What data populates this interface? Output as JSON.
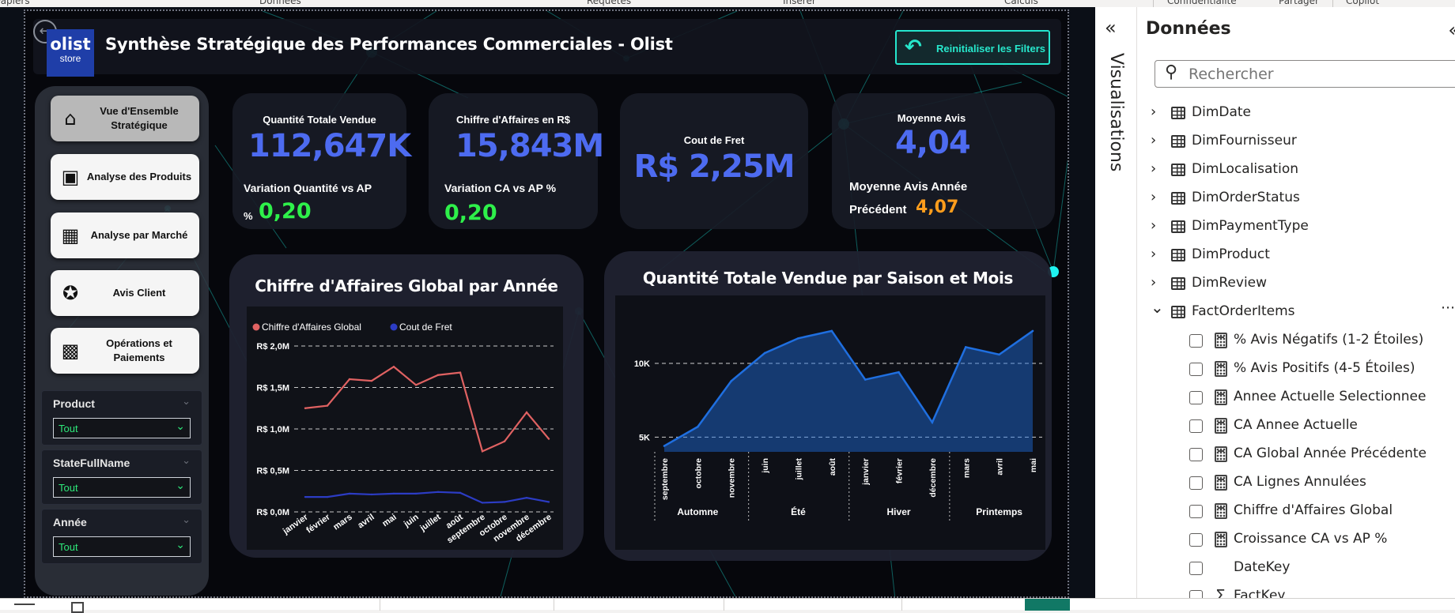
{
  "ribbon": {
    "items": [
      "Papiers",
      "Données",
      "Requêtes",
      "Insérer",
      "Calculs",
      "Confidentialité",
      "Partager",
      "Copilot"
    ]
  },
  "report": {
    "title": "Synthèse Stratégique des Performances Commerciales - Olist",
    "logo_line1": "olist",
    "logo_line2": "store",
    "reset_button": "Reinitialiser les Filters",
    "colors": {
      "accent": "#25e6ce",
      "kpi_blue": "#4d6bf0",
      "positive": "#2ef04a",
      "warning": "#ff9d1c",
      "revenue_line": "#e06262",
      "freight_line": "#2c3cc4",
      "area_fill": "#11478a"
    }
  },
  "nav": {
    "buttons": [
      {
        "label": "Vue d'Ensemble Stratégique",
        "icon": "home-icon",
        "active": true
      },
      {
        "label": "Analyse des Produits",
        "icon": "box-icon",
        "active": false
      },
      {
        "label": "Analyse par Marché",
        "icon": "store-icon",
        "active": false
      },
      {
        "label": "Avis Client",
        "icon": "star-bubble-icon",
        "active": false
      },
      {
        "label": "Opérations et Paiements",
        "icon": "money-icon",
        "active": false
      }
    ],
    "slicers": [
      {
        "title": "Product",
        "value": "Tout"
      },
      {
        "title": "StateFullName",
        "value": "Tout"
      },
      {
        "title": "Année",
        "value": "Tout"
      }
    ]
  },
  "kpis": {
    "quantity": {
      "title": "Quantité Totale Vendue",
      "value": "112,647K",
      "variation_label": "Variation Quantité vs AP",
      "variation_unit": "%",
      "variation_value": "0,20"
    },
    "revenue": {
      "title": "Chiffre d'Affaires en R$",
      "value": "15,843M",
      "variation_label": "Variation CA vs AP %",
      "variation_value": "0,20"
    },
    "freight": {
      "title": "Cout de Fret",
      "value": "R$ 2,25M"
    },
    "rating": {
      "title": "Moyenne Avis",
      "value": "4,04",
      "prev_label_1": "Moyenne Avis Année",
      "prev_label_2": "Précédent",
      "prev_value": "4,07"
    }
  },
  "chart_data": [
    {
      "type": "line",
      "title": "Chiffre d'Affaires Global par Année",
      "categories": [
        "janvier",
        "février",
        "mars",
        "avril",
        "mai",
        "juin",
        "juillet",
        "août",
        "septembre",
        "octobre",
        "novembre",
        "décembre"
      ],
      "series": [
        {
          "name": "Chiffre d'Affaires Global",
          "values": [
            1.25,
            1.28,
            1.6,
            1.58,
            1.75,
            1.53,
            1.65,
            1.68,
            0.73,
            0.85,
            1.2,
            0.88
          ],
          "color": "#e06262"
        },
        {
          "name": "Cout de Fret",
          "values": [
            0.18,
            0.18,
            0.22,
            0.21,
            0.22,
            0.22,
            0.24,
            0.23,
            0.11,
            0.12,
            0.17,
            0.12
          ],
          "color": "#2c3cc4"
        }
      ],
      "yticks": [
        "R$ 0,0M",
        "R$ 0,5M",
        "R$ 1,0M",
        "R$ 1,5M",
        "R$ 2,0M"
      ],
      "ylim": [
        0,
        2.0
      ],
      "legend": "top-left",
      "grid": true
    },
    {
      "type": "area",
      "title": "Quantité Totale Vendue par Saison et Mois",
      "categories": [
        "septembre",
        "octobre",
        "novembre",
        "juin",
        "juillet",
        "août",
        "janvier",
        "février",
        "décembre",
        "mars",
        "avril",
        "mai"
      ],
      "groups": [
        {
          "name": "Automne",
          "months": [
            "septembre",
            "octobre",
            "novembre"
          ]
        },
        {
          "name": "Été",
          "months": [
            "juin",
            "juillet",
            "août"
          ]
        },
        {
          "name": "Hiver",
          "months": [
            "janvier",
            "février",
            "décembre"
          ]
        },
        {
          "name": "Printemps",
          "months": [
            "mars",
            "avril",
            "mai"
          ]
        }
      ],
      "values": [
        4400,
        5700,
        8800,
        10700,
        11700,
        12200,
        8900,
        9400,
        6000,
        11100,
        10600,
        12200
      ],
      "yticks": [
        "5K",
        "10K"
      ],
      "ytick_values": [
        5000,
        10000
      ],
      "ylim": [
        4000,
        13000
      ],
      "grid": true,
      "color": "#1f6fe0"
    }
  ],
  "side": {
    "visualisations_label": "Visualisations",
    "data_title": "Données",
    "search_placeholder": "Rechercher",
    "tables": [
      {
        "name": "DimDate",
        "expanded": false
      },
      {
        "name": "DimFournisseur",
        "expanded": false
      },
      {
        "name": "DimLocalisation",
        "expanded": false
      },
      {
        "name": "DimOrderStatus",
        "expanded": false
      },
      {
        "name": "DimPaymentType",
        "expanded": false
      },
      {
        "name": "DimProduct",
        "expanded": false
      },
      {
        "name": "DimReview",
        "expanded": false
      },
      {
        "name": "FactOrderItems",
        "expanded": true
      }
    ],
    "fields": [
      {
        "name": "% Avis Négatifs (1-2 Étoiles)",
        "kind": "measure"
      },
      {
        "name": "% Avis Positifs (4-5 Étoiles)",
        "kind": "measure"
      },
      {
        "name": "Annee Actuelle Selectionnee",
        "kind": "measure"
      },
      {
        "name": "CA Annee Actuelle",
        "kind": "measure"
      },
      {
        "name": "CA Global Année Précédente",
        "kind": "measure"
      },
      {
        "name": "CA Lignes Annulées",
        "kind": "measure"
      },
      {
        "name": "Chiffre d'Affaires Global",
        "kind": "measure"
      },
      {
        "name": "Croissance CA vs AP %",
        "kind": "measure"
      },
      {
        "name": "DateKey",
        "kind": "column"
      },
      {
        "name": "FactKey",
        "kind": "sum"
      }
    ]
  }
}
